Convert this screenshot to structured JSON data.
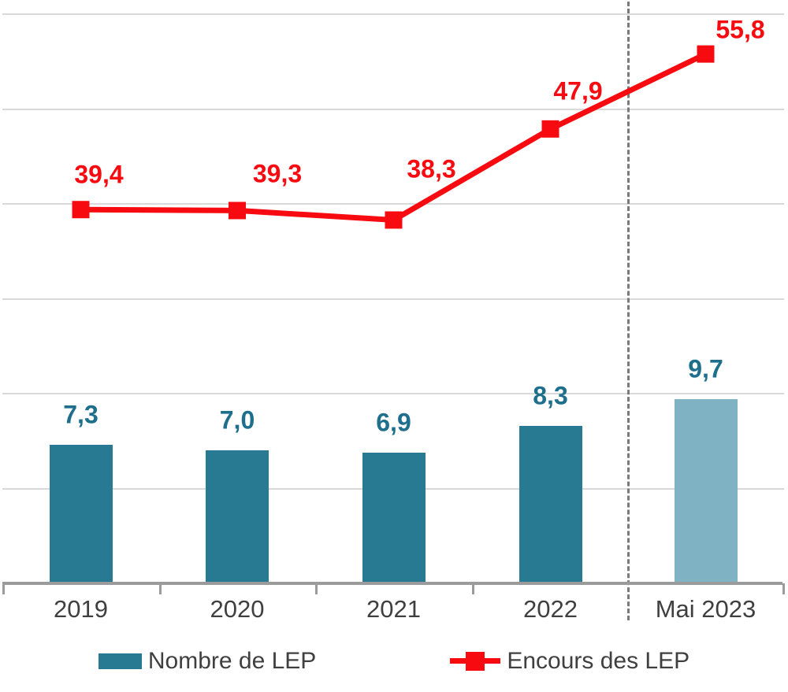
{
  "chart_data": {
    "type": "combo",
    "categories": [
      "2019",
      "2020",
      "2021",
      "2022",
      "Mai 2023"
    ],
    "series": [
      {
        "name": "Nombre de LEP",
        "type": "bar",
        "axis": "left",
        "color": "#287A92",
        "last_point_color": "#7FB2C3",
        "label_color": "#1E6F8C",
        "values": [
          7.3,
          7.0,
          6.9,
          8.3,
          9.7
        ],
        "value_labels": [
          "7,3",
          "7,0",
          "6,9",
          "8,3",
          "9,7"
        ]
      },
      {
        "name": "Encours des LEP",
        "type": "line",
        "axis": "right",
        "color": "#F70B10",
        "label_color": "#F70B10",
        "values": [
          39.4,
          39.3,
          38.3,
          47.9,
          55.8
        ],
        "value_labels": [
          "39,4",
          "39,3",
          "38,3",
          "47,9",
          "55,8"
        ]
      }
    ],
    "left_axis": {
      "min": 0,
      "max": 30,
      "grid_step": 5,
      "labels_visible": false
    },
    "right_axis": {
      "min": 0,
      "max": 60,
      "grid_step": 10,
      "labels_visible": false
    },
    "gridlines": {
      "horizontal": true,
      "color": "#D9D9D9"
    },
    "separator_line": {
      "between": [
        "2022",
        "Mai 2023"
      ],
      "style": "dashed",
      "color": "#7A7A7A"
    },
    "axis_line_color": "#9B9B9B",
    "tick_label_color": "#3F3F3F",
    "title": "",
    "legend_position": "bottom"
  }
}
